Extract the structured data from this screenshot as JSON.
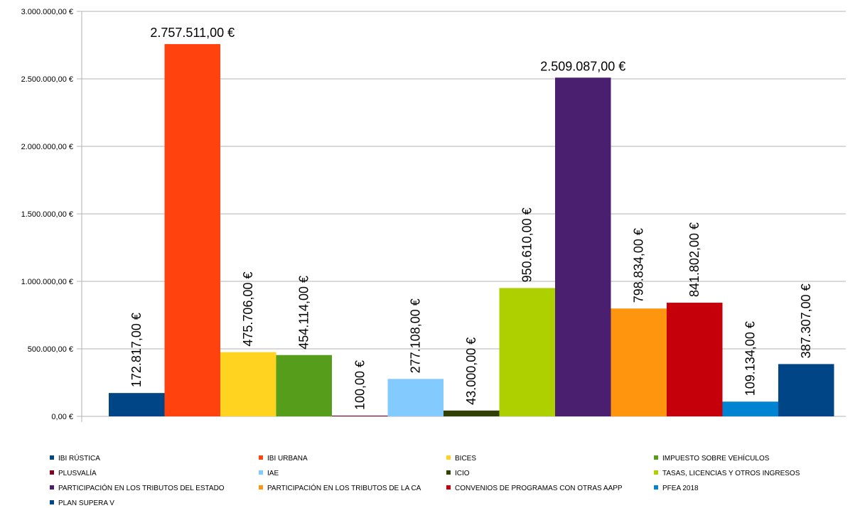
{
  "chart_data": {
    "type": "bar",
    "ylim": [
      0,
      3000000
    ],
    "y_ticks": [
      0,
      500000,
      1000000,
      1500000,
      2000000,
      2500000,
      3000000
    ],
    "y_tick_labels": [
      "0,00 €",
      "500.000,00 €",
      "1.000.000,00 €",
      "1.500.000,00 €",
      "2.000.000,00 €",
      "2.500.000,00 €",
      "3.000.000,00 €"
    ],
    "grid": true,
    "legend_position": "bottom",
    "series": [
      {
        "name": "IBI RÚSTICA",
        "value": 172817,
        "label": "172.817,00 €",
        "color": "#004586",
        "label_rotated": true
      },
      {
        "name": "IBI URBANA",
        "value": 2757511,
        "label": "2.757.511,00 €",
        "color": "#ff420e",
        "label_rotated": false
      },
      {
        "name": "BICES",
        "value": 475706,
        "label": "475.706,00 €",
        "color": "#ffd320",
        "label_rotated": true
      },
      {
        "name": "IMPUESTO SOBRE VEHÍCULOS",
        "value": 454114,
        "label": "454.114,00 €",
        "color": "#579d1c",
        "label_rotated": true
      },
      {
        "name": "PLUSVALÍA",
        "value": 100,
        "label": "100,00 €",
        "color": "#7e0021",
        "label_rotated": true
      },
      {
        "name": "IAE",
        "value": 277108,
        "label": "277.108,00 €",
        "color": "#83caff",
        "label_rotated": true
      },
      {
        "name": "ICIO",
        "value": 43000,
        "label": "43.000,00 €",
        "color": "#314004",
        "label_rotated": true
      },
      {
        "name": "TASAS, LICENCIAS Y OTROS INGRESOS",
        "value": 950610,
        "label": "950.610,00 €",
        "color": "#aecf00",
        "label_rotated": true
      },
      {
        "name": "PARTICIPACIÓN EN LOS TRIBUTOS DEL ESTADO",
        "value": 2509087,
        "label": "2.509.087,00 €",
        "color": "#4b1f6f",
        "label_rotated": false
      },
      {
        "name": "PARTICIPACIÓN EN LOS TRIBUTOS DE LA CA",
        "value": 798834,
        "label": "798.834,00 €",
        "color": "#ff950e",
        "label_rotated": true
      },
      {
        "name": "CONVENIOS DE PROGRAMAS CON OTRAS AAPP",
        "value": 841802,
        "label": "841.802,00 €",
        "color": "#c5000b",
        "label_rotated": true
      },
      {
        "name": "PFEA 2018",
        "value": 109134,
        "label": "109.134,00 €",
        "color": "#0084d1",
        "label_rotated": true
      },
      {
        "name": "PLAN SUPERA V",
        "value": 387307,
        "label": "387.307,00 €",
        "color": "#004586",
        "label_rotated": true
      }
    ]
  }
}
